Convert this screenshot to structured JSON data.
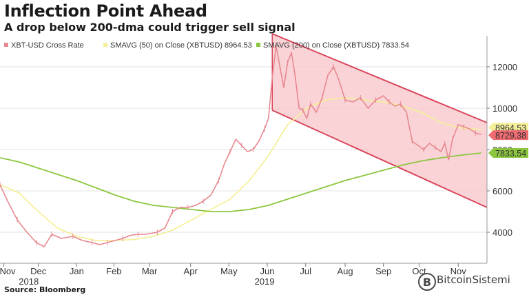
{
  "chart_data": {
    "type": "line",
    "title": "Inflection Point Ahead",
    "subtitle": "A drop below 200-dma could trigger sell signal",
    "source": "Source: Bloomberg",
    "watermark": "BitcoinSistemi",
    "y_axis": {
      "range": [
        2500,
        13500
      ],
      "ticks": [
        4000,
        6000,
        8000,
        10000,
        12000
      ],
      "position": "right",
      "grid": true
    },
    "x_axis": {
      "range": [
        0,
        12.7
      ],
      "ticks": [
        {
          "label": "Nov",
          "x": 0.1
        },
        {
          "label": "Dec",
          "x": 1.0
        },
        {
          "label": "Jan",
          "x": 2.0
        },
        {
          "label": "Feb",
          "x": 2.97
        },
        {
          "label": "Mar",
          "x": 3.9
        },
        {
          "label": "Apr",
          "x": 4.97
        },
        {
          "label": "May",
          "x": 5.97
        },
        {
          "label": "Jun",
          "x": 6.97
        },
        {
          "label": "Jul",
          "x": 7.97
        },
        {
          "label": "Aug",
          "x": 9.0
        },
        {
          "label": "Sep",
          "x": 10.0
        },
        {
          "label": "Oct",
          "x": 10.93
        },
        {
          "label": "Nov",
          "x": 11.95
        }
      ],
      "years": [
        {
          "label": "2018",
          "x": 0.75
        },
        {
          "label": "2019",
          "x": 6.9
        }
      ]
    },
    "legend": {
      "placement": "top-left",
      "items": [
        {
          "label": "XBT-USD Cross Rate",
          "color": "#e8888f"
        },
        {
          "label": "SMAVG (50)  on Close (XBTUSD) 8964.53",
          "color": "#f4f09a"
        },
        {
          "label": "SMAVG (200)  on Close (XBTUSD) 7833.54",
          "color": "#8cc63f"
        }
      ]
    },
    "badges": [
      {
        "label": "8964.53",
        "value": 8964.53,
        "color": "#f4f09a",
        "text_color": "#333333"
      },
      {
        "label": "8729.38",
        "value": 8729.38,
        "color": "#ee6b72",
        "text_color": "#333333"
      },
      {
        "label": "7833.54",
        "value": 7833.54,
        "color": "#8cc63f",
        "text_color": "#333333"
      }
    ],
    "channel": {
      "upper": [
        [
          7.1,
          13600
        ],
        [
          12.7,
          9300
        ]
      ],
      "lower": [
        [
          7.1,
          9900
        ],
        [
          12.7,
          5200
        ]
      ],
      "fill": "#f7c4c8",
      "stroke": "#d9455a"
    },
    "series": [
      {
        "name": "XBT-USD Cross Rate",
        "color": "#e8888f",
        "points": [
          [
            0.0,
            6300
          ],
          [
            0.2,
            5500
          ],
          [
            0.45,
            4600
          ],
          [
            0.7,
            4000
          ],
          [
            0.95,
            3500
          ],
          [
            1.15,
            3300
          ],
          [
            1.35,
            3900
          ],
          [
            1.6,
            3700
          ],
          [
            1.9,
            3800
          ],
          [
            2.15,
            3600
          ],
          [
            2.4,
            3500
          ],
          [
            2.6,
            3400
          ],
          [
            2.8,
            3500
          ],
          [
            3.0,
            3600
          ],
          [
            3.2,
            3700
          ],
          [
            3.4,
            3850
          ],
          [
            3.6,
            3900
          ],
          [
            3.8,
            3900
          ],
          [
            4.1,
            4000
          ],
          [
            4.3,
            4200
          ],
          [
            4.5,
            5000
          ],
          [
            4.7,
            5200
          ],
          [
            4.9,
            5200
          ],
          [
            5.1,
            5300
          ],
          [
            5.3,
            5500
          ],
          [
            5.5,
            5800
          ],
          [
            5.7,
            6500
          ],
          [
            5.85,
            7300
          ],
          [
            6.0,
            7900
          ],
          [
            6.15,
            8500
          ],
          [
            6.3,
            8200
          ],
          [
            6.45,
            7900
          ],
          [
            6.6,
            8000
          ],
          [
            6.75,
            8400
          ],
          [
            6.9,
            9000
          ],
          [
            7.0,
            9500
          ],
          [
            7.1,
            11500
          ],
          [
            7.2,
            13000
          ],
          [
            7.3,
            12000
          ],
          [
            7.4,
            11000
          ],
          [
            7.5,
            12200
          ],
          [
            7.6,
            12700
          ],
          [
            7.7,
            11500
          ],
          [
            7.8,
            10000
          ],
          [
            7.9,
            9900
          ],
          [
            8.0,
            9500
          ],
          [
            8.1,
            10200
          ],
          [
            8.25,
            9800
          ],
          [
            8.4,
            10500
          ],
          [
            8.55,
            11600
          ],
          [
            8.7,
            12000
          ],
          [
            8.85,
            11300
          ],
          [
            9.0,
            10400
          ],
          [
            9.2,
            10300
          ],
          [
            9.4,
            10500
          ],
          [
            9.6,
            10000
          ],
          [
            9.8,
            10400
          ],
          [
            10.0,
            10600
          ],
          [
            10.15,
            10300
          ],
          [
            10.3,
            10100
          ],
          [
            10.45,
            10200
          ],
          [
            10.6,
            9800
          ],
          [
            10.75,
            8400
          ],
          [
            10.9,
            8200
          ],
          [
            11.05,
            8000
          ],
          [
            11.2,
            8300
          ],
          [
            11.35,
            8100
          ],
          [
            11.5,
            7900
          ],
          [
            11.6,
            8300
          ],
          [
            11.7,
            7500
          ],
          [
            11.8,
            8500
          ],
          [
            11.95,
            9200
          ],
          [
            12.1,
            9100
          ],
          [
            12.25,
            9000
          ],
          [
            12.4,
            8800
          ],
          [
            12.55,
            8730
          ]
        ]
      },
      {
        "name": "SMAVG (50)",
        "color": "#f4f09a",
        "points": [
          [
            0.0,
            6300
          ],
          [
            0.5,
            5900
          ],
          [
            1.0,
            5000
          ],
          [
            1.5,
            4200
          ],
          [
            2.0,
            3800
          ],
          [
            2.5,
            3600
          ],
          [
            3.0,
            3600
          ],
          [
            3.5,
            3650
          ],
          [
            4.0,
            3800
          ],
          [
            4.5,
            4100
          ],
          [
            5.0,
            4600
          ],
          [
            5.5,
            5100
          ],
          [
            6.0,
            5600
          ],
          [
            6.5,
            6500
          ],
          [
            7.0,
            7700
          ],
          [
            7.5,
            9200
          ],
          [
            8.0,
            10000
          ],
          [
            8.5,
            10400
          ],
          [
            9.0,
            10500
          ],
          [
            9.5,
            10400
          ],
          [
            10.0,
            10300
          ],
          [
            10.5,
            10100
          ],
          [
            11.0,
            9800
          ],
          [
            11.5,
            9300
          ],
          [
            12.0,
            9050
          ],
          [
            12.55,
            8964
          ]
        ]
      },
      {
        "name": "SMAVG (200)",
        "color": "#8cc63f",
        "points": [
          [
            0.0,
            7600
          ],
          [
            0.5,
            7400
          ],
          [
            1.0,
            7100
          ],
          [
            1.5,
            6800
          ],
          [
            2.0,
            6500
          ],
          [
            2.5,
            6150
          ],
          [
            3.0,
            5800
          ],
          [
            3.5,
            5500
          ],
          [
            4.0,
            5300
          ],
          [
            4.5,
            5200
          ],
          [
            5.0,
            5100
          ],
          [
            5.5,
            5000
          ],
          [
            6.0,
            5000
          ],
          [
            6.5,
            5100
          ],
          [
            7.0,
            5300
          ],
          [
            7.5,
            5600
          ],
          [
            8.0,
            5900
          ],
          [
            8.5,
            6200
          ],
          [
            9.0,
            6500
          ],
          [
            9.5,
            6750
          ],
          [
            10.0,
            7000
          ],
          [
            10.5,
            7250
          ],
          [
            11.0,
            7450
          ],
          [
            11.5,
            7600
          ],
          [
            12.0,
            7720
          ],
          [
            12.55,
            7834
          ]
        ]
      }
    ]
  }
}
